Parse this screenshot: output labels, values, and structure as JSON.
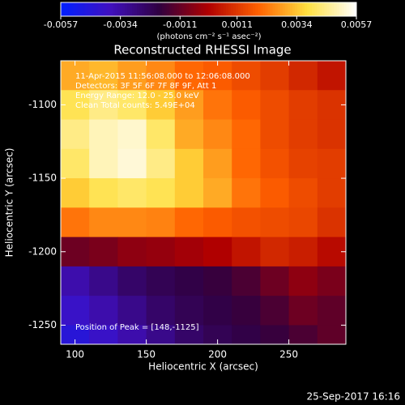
{
  "chart_data": {
    "type": "heatmap",
    "title": "Reconstructed RHESSI Image",
    "xlabel": "Heliocentric X (arcsec)",
    "ylabel": "Heliocentric Y (arcsec)",
    "colorbar_label": "(photons cm⁻² s⁻¹ asec⁻²)",
    "annotations": [
      "11-Apr-2015 11:56:08.000 to 12:06:08.000",
      "Detectors: 3F 5F 6F 7F 8F 9F, Att 1",
      "Energy Range: 12.0 - 25.0 keV",
      "Clean     Total counts: 5.49E+04"
    ],
    "peak_label": "Position of Peak = [148,-1125]",
    "footer": "25-Sep-2017 16:16",
    "xlim": [
      90,
      290
    ],
    "xticks": [
      100,
      150,
      200,
      250
    ],
    "ylim": [
      -1263,
      -1070
    ],
    "yticks": [
      -1100,
      -1150,
      -1200,
      -1250
    ],
    "zlim": [
      -0.0057,
      0.0057
    ],
    "zticks": [
      -0.0057,
      -0.0034,
      -0.0011,
      0.0011,
      0.0034,
      0.0057
    ],
    "colormap": [
      "#0020ff",
      "#4010c0",
      "#300040",
      "#b00000",
      "#ff6000",
      "#ffe040",
      "#ffffff"
    ],
    "x": [
      100,
      120,
      140,
      160,
      180,
      200,
      220,
      240,
      260,
      280
    ],
    "y": [
      -1080,
      -1100,
      -1120,
      -1140,
      -1160,
      -1180,
      -1200,
      -1220,
      -1240,
      -1260
    ],
    "z": [
      [
        0.003,
        0.0032,
        0.0028,
        0.0025,
        0.002,
        0.0018,
        0.0015,
        0.0012,
        0.0008,
        0.0004
      ],
      [
        0.004,
        0.0045,
        0.0042,
        0.0035,
        0.0028,
        0.0022,
        0.0018,
        0.0015,
        0.0012,
        0.001
      ],
      [
        0.0045,
        0.005,
        0.0052,
        0.0042,
        0.003,
        0.0025,
        0.002,
        0.0015,
        0.0012,
        0.001
      ],
      [
        0.0042,
        0.005,
        0.0053,
        0.0045,
        0.0035,
        0.0028,
        0.002,
        0.0016,
        0.0013,
        0.0012
      ],
      [
        0.0035,
        0.004,
        0.0042,
        0.004,
        0.0035,
        0.003,
        0.0022,
        0.0018,
        0.0015,
        0.0012
      ],
      [
        0.0022,
        0.0025,
        0.0025,
        0.0024,
        0.002,
        0.0018,
        0.0016,
        0.0015,
        0.0014,
        0.001
      ],
      [
        -0.001,
        -0.0008,
        -0.0005,
        -0.0004,
        -0.0002,
        0.0,
        0.0004,
        0.0008,
        0.0006,
        0.0002
      ],
      [
        -0.0035,
        -0.003,
        -0.0025,
        -0.0022,
        -0.002,
        -0.0018,
        -0.0015,
        -0.001,
        -0.0005,
        -0.0008
      ],
      [
        -0.004,
        -0.0035,
        -0.003,
        -0.0025,
        -0.0022,
        -0.002,
        -0.0018,
        -0.0015,
        -0.001,
        -0.0012
      ],
      [
        -0.0045,
        -0.004,
        -0.0035,
        -0.003,
        -0.0025,
        -0.0022,
        -0.002,
        -0.0018,
        -0.0015,
        -0.0012
      ]
    ]
  }
}
